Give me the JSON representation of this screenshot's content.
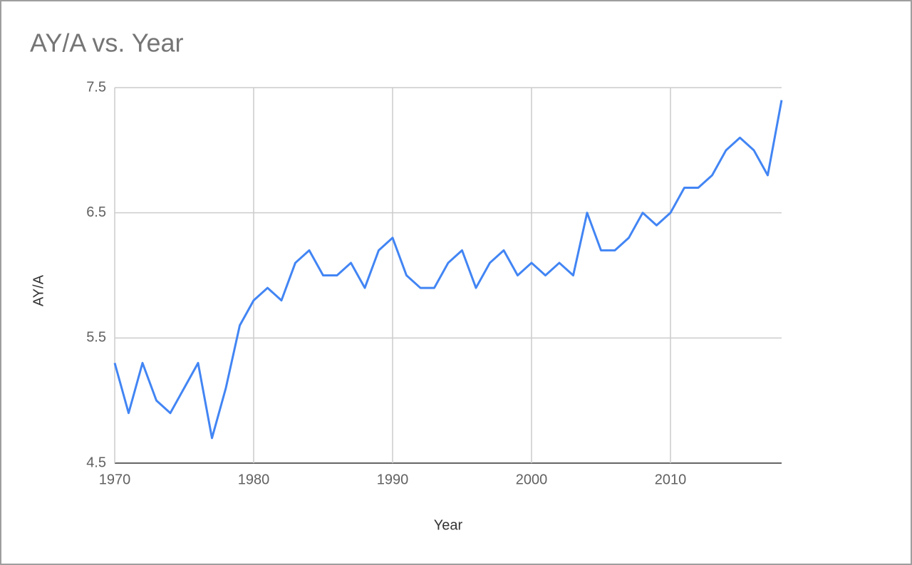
{
  "chart_data": {
    "type": "line",
    "title": "AY/A vs. Year",
    "x_label": "Year",
    "y_label": "AY/A",
    "x": [
      1970,
      1971,
      1972,
      1973,
      1974,
      1975,
      1976,
      1977,
      1978,
      1979,
      1980,
      1981,
      1982,
      1983,
      1984,
      1985,
      1986,
      1987,
      1988,
      1989,
      1990,
      1991,
      1992,
      1993,
      1994,
      1995,
      1996,
      1997,
      1998,
      1999,
      2000,
      2001,
      2002,
      2003,
      2004,
      2005,
      2006,
      2007,
      2008,
      2009,
      2010,
      2011,
      2012,
      2013,
      2014,
      2015,
      2016,
      2017,
      2018
    ],
    "values": [
      5.3,
      4.9,
      5.3,
      5.0,
      4.9,
      5.1,
      5.3,
      4.7,
      5.1,
      5.6,
      5.8,
      5.9,
      5.8,
      6.1,
      6.2,
      6.0,
      6.0,
      6.1,
      5.9,
      6.2,
      6.3,
      6.0,
      5.9,
      5.9,
      6.1,
      6.2,
      5.9,
      6.1,
      6.2,
      6.0,
      6.1,
      6.0,
      6.1,
      6.0,
      6.5,
      6.2,
      6.2,
      6.3,
      6.5,
      6.4,
      6.5,
      6.7,
      6.7,
      6.8,
      7.0,
      7.1,
      7.0,
      6.8,
      7.4
    ],
    "color": "#4285f4",
    "xlim": [
      1970,
      2018
    ],
    "xticks": [
      1970,
      1980,
      1990,
      2000,
      2010
    ],
    "ylim": [
      4.5,
      7.5
    ],
    "yticks": [
      4.5,
      5.5,
      6.5,
      7.5
    ],
    "grid": true
  }
}
